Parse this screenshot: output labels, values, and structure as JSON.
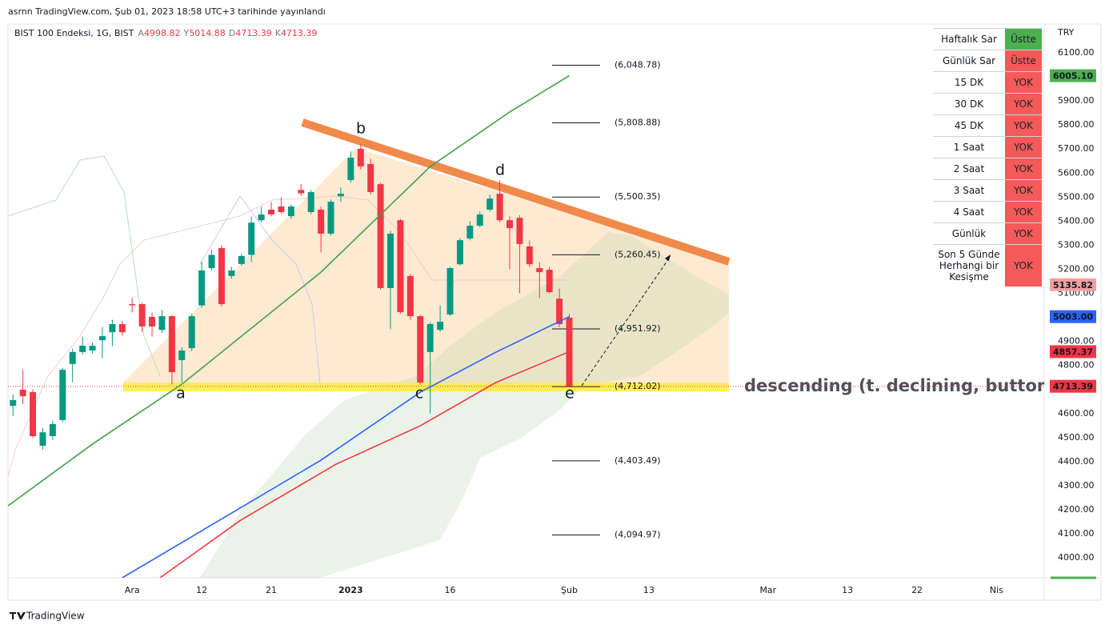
{
  "header": {
    "published": "asrnn TradingView.com, Şub 01, 2023 18:58 UTC+3 tarihinde yayınlandı",
    "footer": "TradingView"
  },
  "chart_data": {
    "type": "candlestick",
    "symbol": "BIST 100 Endeksi, 1G, BIST",
    "legend_letters": [
      "A",
      "Y",
      "D",
      "K"
    ],
    "currency": "TRY",
    "up_color": "#089981",
    "down_color": "#f23645",
    "xlim": [
      -0.5,
      103.8
    ],
    "xticks": [
      {
        "value": 12,
        "label": "Ara"
      },
      {
        "value": 19,
        "label": "12"
      },
      {
        "value": 26,
        "label": "21"
      },
      {
        "value": 34,
        "label": "2023"
      },
      {
        "value": 44,
        "label": "16"
      },
      {
        "value": 56,
        "label": "Şub"
      },
      {
        "value": 64,
        "label": "13"
      },
      {
        "value": 76,
        "label": "Mar"
      },
      {
        "value": 84,
        "label": "13"
      },
      {
        "value": 91,
        "label": "22"
      },
      {
        "value": 99,
        "label": "Nis"
      }
    ],
    "ylim": [
      3917,
      6220
    ],
    "yticks": [
      {
        "value": 4000,
        "label": "4000.00"
      },
      {
        "value": 4100,
        "label": "4100.00"
      },
      {
        "value": 4200,
        "label": "4200.00"
      },
      {
        "value": 4300,
        "label": "4300.00"
      },
      {
        "value": 4400,
        "label": "4400.00"
      },
      {
        "value": 4500,
        "label": "4500.00"
      },
      {
        "value": 4600,
        "label": "4600.00"
      },
      {
        "value": 4700,
        "label": "4700.00"
      },
      {
        "value": 4800,
        "label": "4800.00"
      },
      {
        "value": 4900,
        "label": "4900.00"
      },
      {
        "value": 5000,
        "label": "5000.00"
      },
      {
        "value": 5100,
        "label": "5100.00"
      },
      {
        "value": 5200,
        "label": "5200.00"
      },
      {
        "value": 5300,
        "label": "5300.00"
      },
      {
        "value": 5400,
        "label": "5400.00"
      },
      {
        "value": 5500,
        "label": "5500.00"
      },
      {
        "value": 5600,
        "label": "5600.00"
      },
      {
        "value": 5700,
        "label": "5700.00"
      },
      {
        "value": 5800,
        "label": "5800.00"
      },
      {
        "value": 5900,
        "label": "5900.00"
      },
      {
        "value": 6000,
        "label": "6000.00"
      },
      {
        "value": 6100,
        "label": "6100.00"
      }
    ],
    "grid": false,
    "open": [
      4632,
      4699,
      4689,
      4466,
      4506,
      4573,
      4806,
      4856,
      4862,
      4905,
      4938,
      4972,
      5055,
      5055,
      5002,
      4948,
      5005,
      4822,
      4872,
      5050,
      5205,
      5288,
      5172,
      5222,
      5260,
      5404,
      5448,
      5461,
      5421,
      5530,
      5438,
      5448,
      5348,
      5504,
      5571,
      5701,
      5638,
      5554,
      5122,
      5404,
      5172,
      5005,
      4856,
      4948,
      5012,
      5221,
      5328,
      5381,
      5448,
      5514,
      5404,
      5414,
      5295,
      5205,
      5198,
      5078,
      4998.82
    ],
    "high": [
      4680,
      4782,
      4700,
      4540,
      4570,
      4790,
      4870,
      4920,
      4895,
      4960,
      4990,
      4985,
      5080,
      5060,
      5020,
      5030,
      5010,
      4875,
      5015,
      5230,
      5280,
      5300,
      5210,
      5265,
      5420,
      5460,
      5480,
      5500,
      5470,
      5555,
      5530,
      5460,
      5490,
      5540,
      5690,
      5720,
      5660,
      5560,
      5360,
      5410,
      5180,
      5010,
      4980,
      5050,
      5210,
      5330,
      5400,
      5440,
      5510,
      5570,
      5420,
      5425,
      5320,
      5230,
      5210,
      5120,
      5014.88
    ],
    "low": [
      4590,
      4640,
      4500,
      4450,
      4490,
      4565,
      4730,
      4845,
      4850,
      4830,
      4880,
      4925,
      5020,
      4940,
      4920,
      4935,
      4720,
      4730,
      4860,
      5040,
      5195,
      5045,
      5160,
      5215,
      5230,
      5395,
      5420,
      5430,
      5410,
      5505,
      5430,
      5270,
      5340,
      5480,
      5560,
      5615,
      5510,
      5115,
      4950,
      5015,
      4990,
      4720,
      4600,
      4940,
      5005,
      5215,
      5320,
      5375,
      5440,
      5395,
      5200,
      5100,
      5210,
      5080,
      5100,
      4960,
      4713.39
    ],
    "close": [
      4656,
      4672,
      4506,
      4522,
      4556,
      4782,
      4856,
      4882,
      4882,
      4922,
      4972,
      4938,
      5050,
      4962,
      4962,
      5005,
      4772,
      4862,
      5005,
      5195,
      5260,
      5055,
      5195,
      5255,
      5394,
      5428,
      5428,
      5438,
      5461,
      5516,
      5521,
      5348,
      5481,
      5514,
      5664,
      5628,
      5521,
      5122,
      5348,
      5022,
      5005,
      4729,
      4972,
      4982,
      5205,
      5321,
      5381,
      5428,
      5494,
      5404,
      5371,
      5305,
      5221,
      5188,
      5105,
      4972,
      4713.39
    ],
    "lines": [
      {
        "color": "#43a047",
        "x": [
          -0.5,
          8,
          17,
          31,
          42,
          50,
          56
        ],
        "values": [
          4216,
          4473,
          4722,
          5188,
          5627,
          5854,
          6005
        ]
      },
      {
        "color": "#2962ff",
        "x": [
          11,
          31,
          41,
          48.6,
          56
        ],
        "values": [
          3917,
          4406,
          4689,
          4855,
          5003
        ]
      },
      {
        "color": "#f23645",
        "x": [
          14.8,
          22.9,
          32.5,
          41,
          48.6,
          56
        ],
        "values": [
          3917,
          4156,
          4389,
          4549,
          4729,
          4857.37
        ]
      }
    ],
    "price_tags": [
      {
        "value": 6005.1,
        "label": "6005.10",
        "color": "#4caf50"
      },
      {
        "value": 5135.82,
        "color": "#f0a0a0"
      },
      {
        "value": 5003,
        "label": "5003.00",
        "color": "#2962ff"
      },
      {
        "value": 4857.37,
        "color": "#f23645"
      }
    ],
    "last_price_color": "#f23645",
    "fib_levels": [
      {
        "value": 6048.78,
        "label": "(6,048.78)"
      },
      {
        "value": 5808.88,
        "label": "(5,808.88)"
      },
      {
        "value": 5500.35,
        "label": "(5,500.35)"
      },
      {
        "value": 5260.45,
        "label": "(5,260.45)"
      },
      {
        "value": 4951.92,
        "label": "(4,951.92)"
      },
      {
        "value": 4712.02,
        "label": "(4,712.02)"
      },
      {
        "value": 4403.49,
        "label": "(4,403.49)"
      },
      {
        "value": 4094.97,
        "label": "(4,094.97)"
      }
    ],
    "pattern_points": [
      "a",
      "b",
      "c",
      "d",
      "e"
    ],
    "annotation": "descending (t. declining, buttom f"
  },
  "table": {
    "rows": [
      {
        "label": "Haftalık Sar",
        "status": "Üstte",
        "color": "#4caf50"
      },
      {
        "label": "Günlük Sar",
        "status": "Üstte",
        "color": "#f55a5a"
      },
      {
        "label": "15 DK",
        "status": "YOK",
        "color": "#f55a5a"
      },
      {
        "label": "30 DK",
        "status": "YOK",
        "color": "#f55a5a"
      },
      {
        "label": "45 DK",
        "status": "YOK",
        "color": "#f55a5a"
      },
      {
        "label": "1 Saat",
        "status": "YOK",
        "color": "#f55a5a"
      },
      {
        "label": "2 Saat",
        "status": "YOK",
        "color": "#f55a5a"
      },
      {
        "label": "3 Saat",
        "status": "YOK",
        "color": "#f55a5a"
      },
      {
        "label": "4 Saat",
        "status": "YOK",
        "color": "#f55a5a"
      },
      {
        "label": "Günlük",
        "status": "YOK",
        "color": "#f55a5a"
      },
      {
        "label": "Son 5 Günde Herhangi bir Kesişme",
        "status": "YOK",
        "color": "#f55a5a"
      }
    ]
  }
}
